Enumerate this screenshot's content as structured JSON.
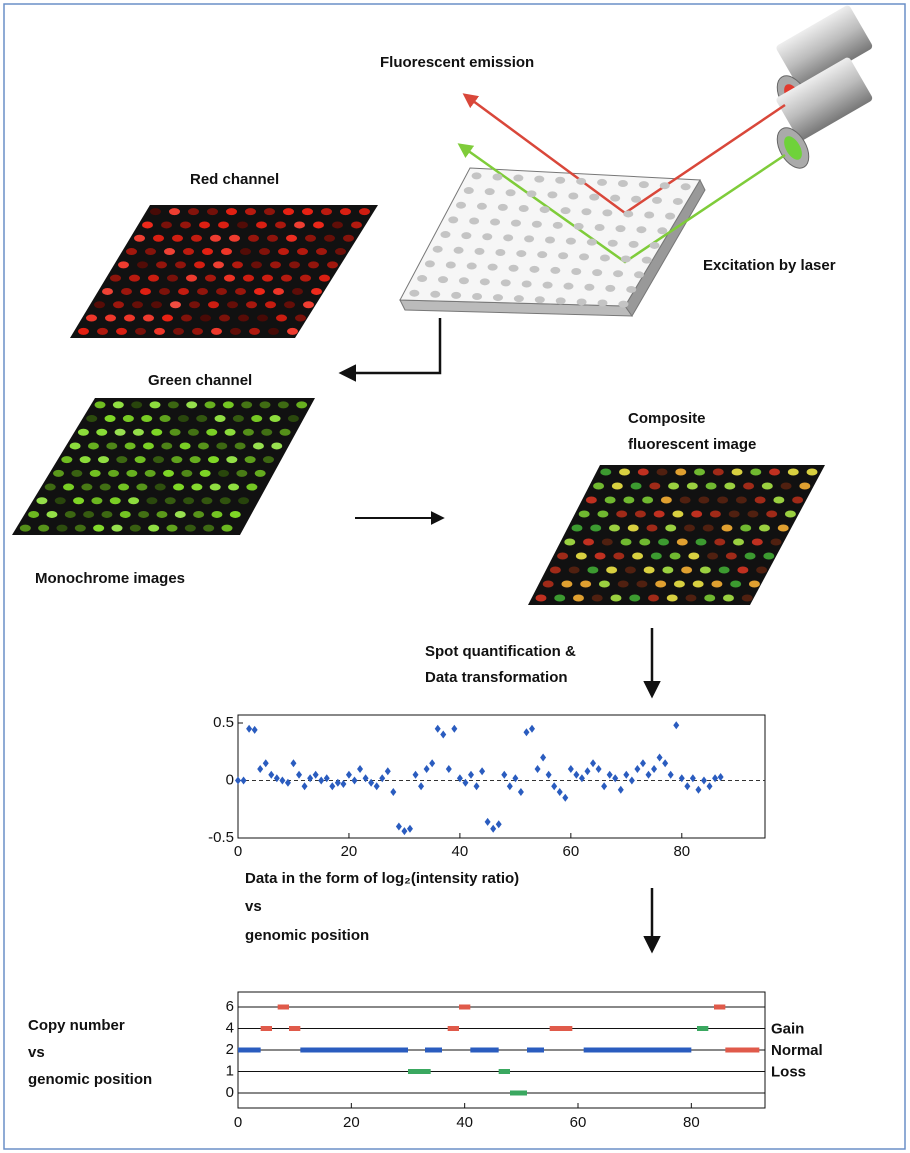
{
  "labels": {
    "emission": "Fluorescent emission",
    "red_channel": "Red channel",
    "excitation": "Excitation by laser",
    "green_channel": "Green channel",
    "composite": [
      "Composite",
      "fluorescent image"
    ],
    "monochrome": "Monochrome images",
    "quantification": [
      "Spot quantification &",
      "Data transformation"
    ],
    "ratio_caption": [
      "Data in the form of log₂(intensity ratio)",
      "vs",
      "genomic position"
    ],
    "copy_caption": [
      "Copy number",
      "vs",
      "genomic position"
    ]
  },
  "chart_data": [
    {
      "type": "scatter",
      "color": "#2a5cbf",
      "x": [
        0,
        1,
        2,
        3,
        4,
        5,
        6,
        7,
        8,
        9,
        10,
        11,
        12,
        13,
        14,
        15,
        16,
        17,
        18,
        19,
        20,
        21,
        22,
        23,
        24,
        25,
        26,
        27,
        28,
        29,
        30,
        31,
        32,
        33,
        34,
        35,
        36,
        37,
        38,
        39,
        40,
        41,
        42,
        43,
        44,
        45,
        46,
        47,
        48,
        49,
        50,
        51,
        52,
        53,
        54,
        55,
        56,
        57,
        58,
        59,
        60,
        61,
        62,
        63,
        64,
        65,
        66,
        67,
        68,
        69,
        70,
        71,
        72,
        73,
        74,
        75,
        76,
        77,
        78,
        79,
        80,
        81,
        82,
        83,
        84,
        85,
        86,
        87
      ],
      "values": [
        0,
        0,
        0.45,
        0.44,
        0.1,
        0.15,
        0.05,
        0.02,
        0,
        -0.02,
        0.15,
        0.05,
        -0.05,
        0.02,
        0.05,
        0,
        0.02,
        -0.05,
        -0.02,
        -0.03,
        0.05,
        0,
        0.1,
        0.02,
        -0.02,
        -0.05,
        0.02,
        0.08,
        -0.1,
        -0.4,
        -0.44,
        -0.42,
        0.05,
        -0.05,
        0.1,
        0.15,
        0.45,
        0.4,
        0.1,
        0.45,
        0.02,
        -0.02,
        0.05,
        -0.05,
        0.08,
        -0.36,
        -0.42,
        -0.38,
        0.05,
        -0.05,
        0.02,
        -0.1,
        0.42,
        0.45,
        0.1,
        0.2,
        0.05,
        -0.05,
        -0.1,
        -0.15,
        0.1,
        0.05,
        0.02,
        0.08,
        0.15,
        0.1,
        -0.05,
        0.05,
        0.02,
        -0.08,
        0.05,
        0,
        0.1,
        0.15,
        0.05,
        0.1,
        0.2,
        0.15,
        0.05,
        0.48,
        0.02,
        -0.05,
        0.02,
        -0.08,
        0,
        -0.05,
        0.02,
        0.03
      ],
      "xlim": [
        0,
        95
      ],
      "ylim": [
        -0.5,
        0.5
      ],
      "xticks": [
        0,
        20,
        40,
        60,
        80
      ],
      "yticks": [
        0.5,
        0,
        -0.5
      ],
      "zero_line": true
    },
    {
      "type": "segments",
      "yscale": "levels",
      "xlim": [
        0,
        93
      ],
      "xticks": [
        0,
        20,
        40,
        60,
        80
      ],
      "yticks": [
        0,
        1,
        2,
        4,
        6
      ],
      "right_labels": [
        {
          "label": "Gain",
          "level": 4
        },
        {
          "label": "Normal",
          "level": 2
        },
        {
          "label": "Loss",
          "level": 1
        }
      ],
      "segments": [
        {
          "x": [
            0,
            4
          ],
          "y": 2,
          "color": "#2a5cbf"
        },
        {
          "x": [
            4,
            6
          ],
          "y": 4,
          "color": "#e05a4a"
        },
        {
          "x": [
            7,
            9
          ],
          "y": 6,
          "color": "#e05a4a"
        },
        {
          "x": [
            9,
            11
          ],
          "y": 4,
          "color": "#e05a4a"
        },
        {
          "x": [
            11,
            30
          ],
          "y": 2,
          "color": "#2a5cbf"
        },
        {
          "x": [
            30,
            34
          ],
          "y": 1,
          "color": "#3aa860"
        },
        {
          "x": [
            33,
            36
          ],
          "y": 2,
          "color": "#2a5cbf"
        },
        {
          "x": [
            37,
            39
          ],
          "y": 4,
          "color": "#e05a4a"
        },
        {
          "x": [
            39,
            41
          ],
          "y": 6,
          "color": "#e05a4a"
        },
        {
          "x": [
            41,
            46
          ],
          "y": 2,
          "color": "#2a5cbf"
        },
        {
          "x": [
            46,
            48
          ],
          "y": 1,
          "color": "#3aa860"
        },
        {
          "x": [
            48,
            51
          ],
          "y": 0,
          "color": "#3aa860"
        },
        {
          "x": [
            51,
            54
          ],
          "y": 2,
          "color": "#2a5cbf"
        },
        {
          "x": [
            55,
            59
          ],
          "y": 4,
          "color": "#e05a4a"
        },
        {
          "x": [
            61,
            80
          ],
          "y": 2,
          "color": "#2a5cbf"
        },
        {
          "x": [
            81,
            83
          ],
          "y": 4,
          "color": "#3aa860"
        },
        {
          "x": [
            84,
            86
          ],
          "y": 6,
          "color": "#e05a4a"
        },
        {
          "x": [
            86,
            92
          ],
          "y": 2,
          "color": "#e05a4a"
        }
      ]
    }
  ]
}
